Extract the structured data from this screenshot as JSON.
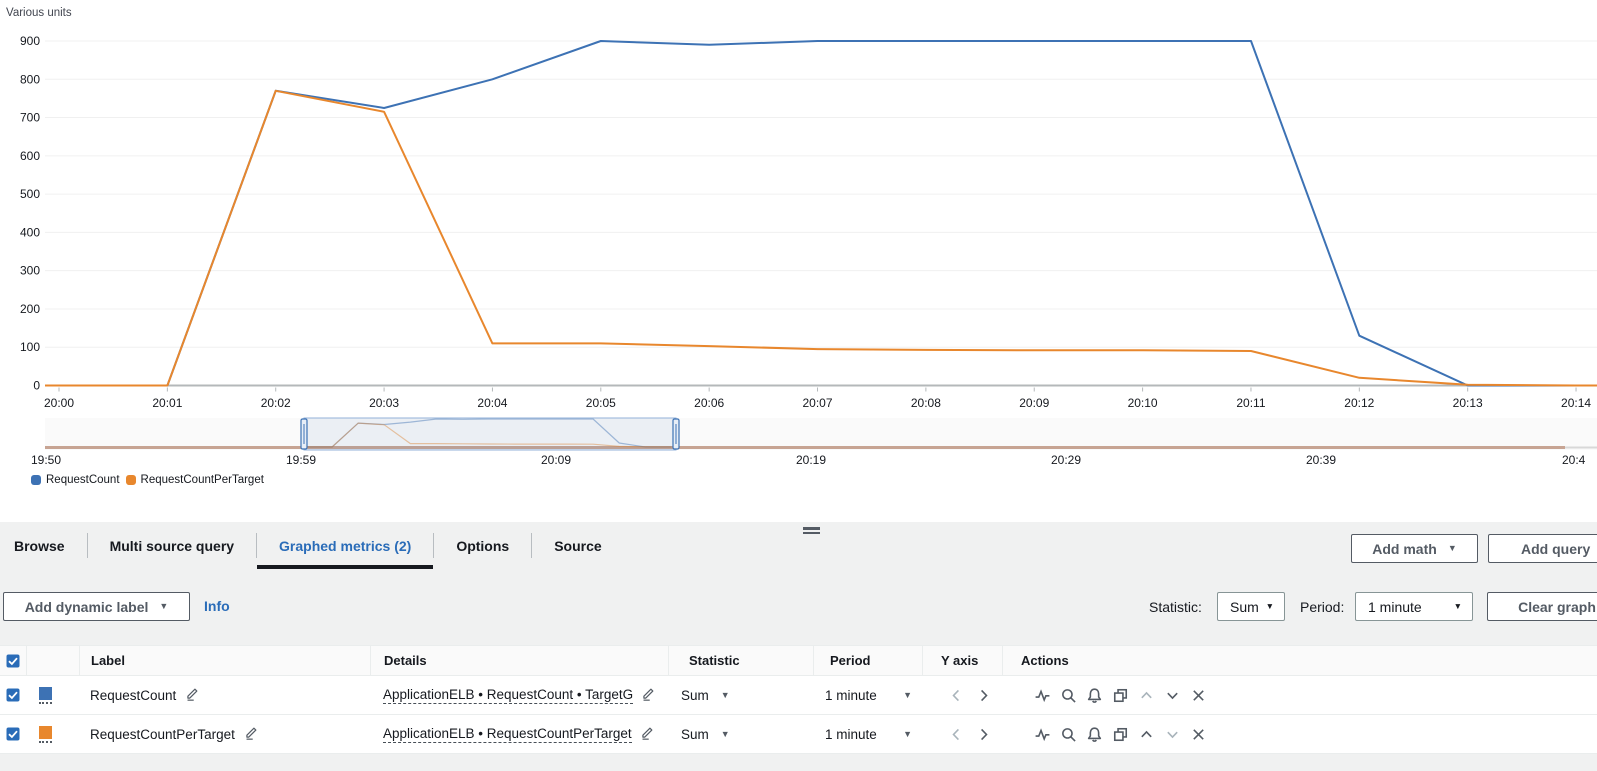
{
  "chart_data": {
    "type": "line",
    "title": "Various units",
    "x": [
      "20:00",
      "20:01",
      "20:02",
      "20:03",
      "20:04",
      "20:05",
      "20:06",
      "20:07",
      "20:08",
      "20:09",
      "20:10",
      "20:11",
      "20:12",
      "20:13",
      "20:14"
    ],
    "ylim": [
      0,
      900
    ],
    "y_ticks": [
      0,
      100,
      200,
      300,
      400,
      500,
      600,
      700,
      800,
      900
    ],
    "grid": true,
    "legend_position": "bottom-left",
    "series": [
      {
        "name": "RequestCount",
        "color": "#3d72b4",
        "values": [
          0,
          0,
          770,
          725,
          800,
          900,
          890,
          900,
          900,
          900,
          900,
          900,
          130,
          0,
          0
        ]
      },
      {
        "name": "RequestCountPerTarget",
        "color": "#e8872d",
        "values": [
          0,
          0,
          770,
          715,
          110,
          110,
          103,
          95,
          93,
          92,
          92,
          90,
          20,
          2,
          0
        ]
      }
    ],
    "timeline": {
      "ticks": [
        "19:50",
        "19:59",
        "20:09",
        "20:19",
        "20:29",
        "20:39",
        "20:4"
      ],
      "selection_range": [
        "20:00",
        "20:14"
      ]
    }
  },
  "panel": {
    "tabs": [
      {
        "label": "Browse",
        "active": false
      },
      {
        "label": "Multi source query",
        "active": false
      },
      {
        "label": "Graphed metrics (2)",
        "active": true
      },
      {
        "label": "Options",
        "active": false
      },
      {
        "label": "Source",
        "active": false
      }
    ],
    "add_math_label": "Add math",
    "add_query_label": "Add query",
    "add_dynamic_label": "Add dynamic label",
    "info_label": "Info",
    "statistic_label": "Statistic:",
    "statistic_value": "Sum",
    "period_label": "Period:",
    "period_value": "1 minute",
    "clear_graph_label": "Clear graph"
  },
  "table": {
    "headers": [
      "Label",
      "Details",
      "Statistic",
      "Period",
      "Y axis",
      "Actions"
    ],
    "action_icons": [
      "pulse",
      "search",
      "bell",
      "duplicate",
      "move-up",
      "move-down",
      "remove"
    ],
    "yaxis_icons": [
      "chevron-left",
      "chevron-right"
    ],
    "rows": [
      {
        "checked": true,
        "color": "#3d72b4",
        "label": "RequestCount",
        "details": "ApplicationELB • RequestCount • TargetG",
        "statistic": "Sum",
        "period": "1 minute",
        "up_disabled": true,
        "down_disabled": false
      },
      {
        "checked": true,
        "color": "#e8872d",
        "label": "RequestCountPerTarget",
        "details": "ApplicationELB • RequestCountPerTarget",
        "statistic": "Sum",
        "period": "1 minute",
        "up_disabled": false,
        "down_disabled": true
      }
    ]
  },
  "icons": {
    "caret_down": "▼"
  },
  "colors": {
    "accent": "#2a6cb8",
    "text": "#16191f",
    "secondary": "#545b64",
    "disabled": "#a9b4bb",
    "border": "#eaeded",
    "panel_bg": "#f0f1f1",
    "axis": "#b4b8ba",
    "brush_baseline": "#c7a493"
  }
}
